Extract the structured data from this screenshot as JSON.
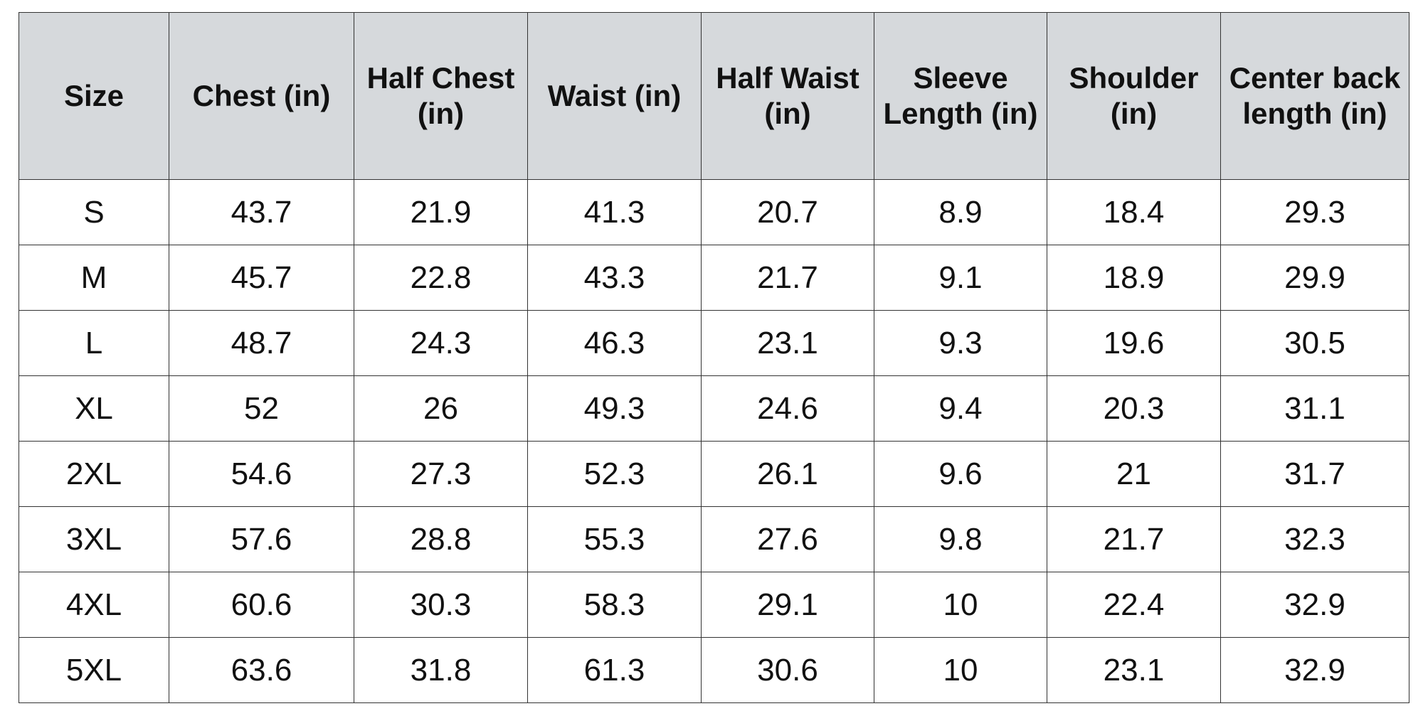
{
  "table": {
    "header": [
      "Size",
      "Chest (in)",
      "Half Chest (in)",
      "Waist (in)",
      "Half Waist (in)",
      "Sleeve Length (in)",
      "Shoulder (in)",
      "Center back length (in)"
    ],
    "rows": [
      [
        "S",
        43.7,
        21.9,
        41.3,
        20.7,
        8.9,
        18.4,
        29.3
      ],
      [
        "M",
        45.7,
        22.8,
        43.3,
        21.7,
        9.1,
        18.9,
        29.9
      ],
      [
        "L",
        48.7,
        24.3,
        46.3,
        23.1,
        9.3,
        19.6,
        30.5
      ],
      [
        "XL",
        52,
        26,
        49.3,
        24.6,
        9.4,
        20.3,
        31.1
      ],
      [
        "2XL",
        54.6,
        27.3,
        52.3,
        26.1,
        9.6,
        21,
        31.7
      ],
      [
        "3XL",
        57.6,
        28.8,
        55.3,
        27.6,
        9.8,
        21.7,
        32.3
      ],
      [
        "4XL",
        60.6,
        30.3,
        58.3,
        29.1,
        10,
        22.4,
        32.9
      ],
      [
        "5XL",
        63.6,
        31.8,
        61.3,
        30.6,
        10,
        23.1,
        32.9
      ]
    ]
  }
}
